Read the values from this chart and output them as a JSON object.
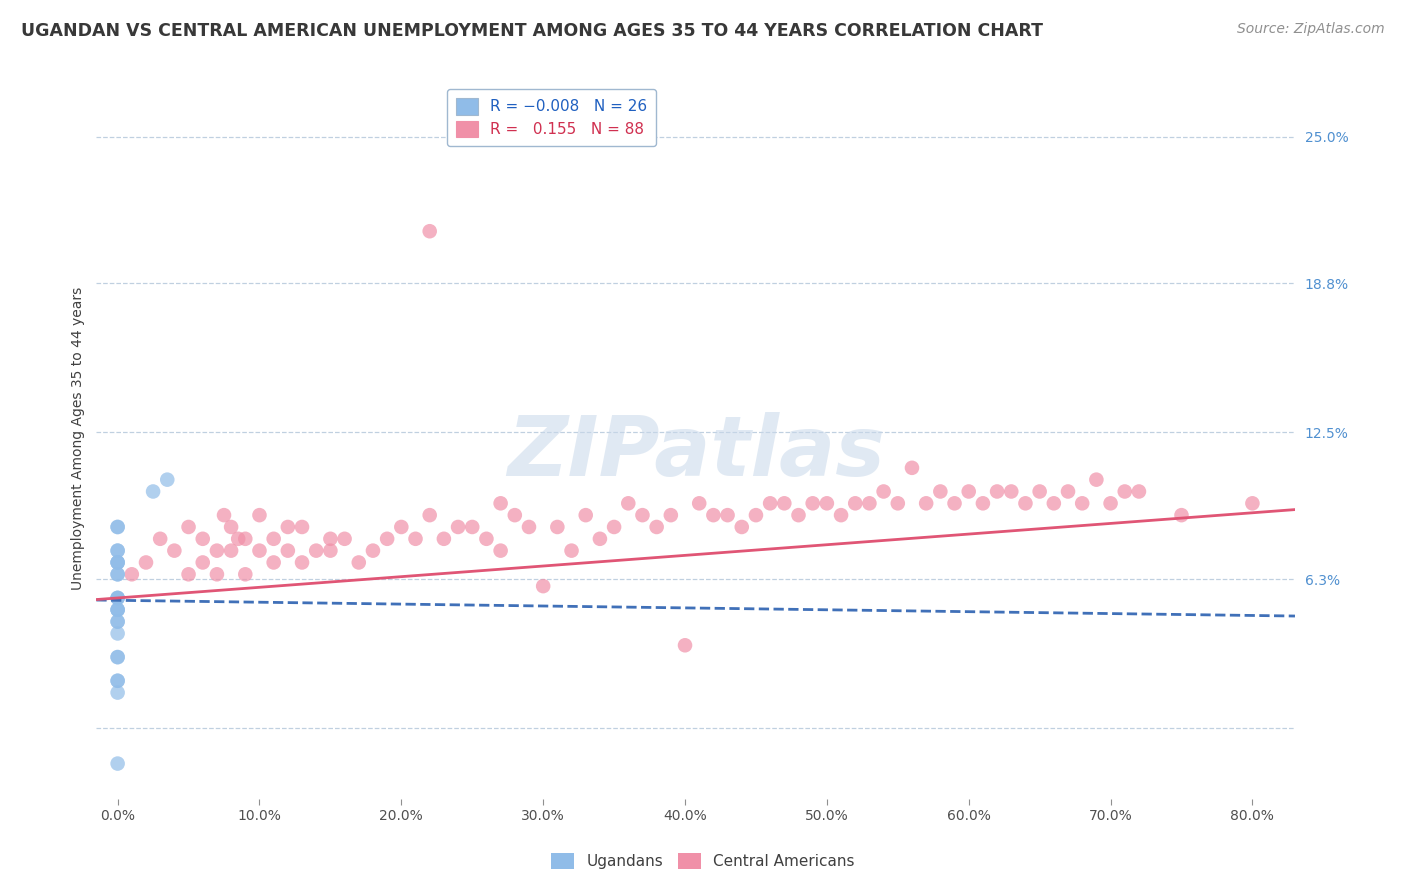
{
  "title": "UGANDAN VS CENTRAL AMERICAN UNEMPLOYMENT AMONG AGES 35 TO 44 YEARS CORRELATION CHART",
  "source": "Source: ZipAtlas.com",
  "xlabel_ticks": [
    0.0,
    10.0,
    20.0,
    30.0,
    40.0,
    50.0,
    60.0,
    70.0,
    80.0
  ],
  "ylabel_ticks": [
    0.0,
    6.3,
    12.5,
    18.8,
    25.0
  ],
  "ylabel_label": "Unemployment Among Ages 35 to 44 years",
  "xlim": [
    -1.5,
    83.0
  ],
  "ylim": [
    -3.0,
    27.5
  ],
  "ugandan_x": [
    0.0,
    0.0,
    0.0,
    0.0,
    0.0,
    0.0,
    0.0,
    0.0,
    0.0,
    0.0,
    0.0,
    0.0,
    0.0,
    0.0,
    0.0,
    0.0,
    0.0,
    0.0,
    2.5,
    3.5,
    0.0,
    0.0,
    0.0,
    0.0,
    0.0,
    0.0
  ],
  "ugandan_y": [
    8.5,
    8.5,
    7.5,
    7.5,
    7.0,
    7.0,
    7.0,
    6.5,
    6.5,
    5.5,
    5.5,
    5.5,
    5.0,
    5.0,
    5.0,
    4.5,
    4.5,
    4.0,
    10.0,
    10.5,
    3.0,
    3.0,
    2.0,
    2.0,
    1.5,
    -1.5
  ],
  "central_x": [
    1.0,
    2.0,
    3.0,
    4.0,
    5.0,
    5.0,
    6.0,
    6.0,
    7.0,
    7.0,
    7.5,
    8.0,
    8.0,
    8.5,
    9.0,
    9.0,
    10.0,
    10.0,
    11.0,
    11.0,
    12.0,
    12.0,
    13.0,
    13.0,
    14.0,
    15.0,
    15.0,
    16.0,
    17.0,
    18.0,
    19.0,
    20.0,
    21.0,
    22.0,
    22.0,
    23.0,
    24.0,
    25.0,
    26.0,
    27.0,
    27.0,
    28.0,
    29.0,
    30.0,
    31.0,
    32.0,
    33.0,
    34.0,
    35.0,
    36.0,
    37.0,
    38.0,
    39.0,
    40.0,
    41.0,
    42.0,
    43.0,
    44.0,
    45.0,
    46.0,
    47.0,
    48.0,
    49.0,
    50.0,
    51.0,
    52.0,
    53.0,
    54.0,
    55.0,
    56.0,
    57.0,
    58.0,
    59.0,
    60.0,
    61.0,
    62.0,
    63.0,
    64.0,
    65.0,
    66.0,
    67.0,
    68.0,
    69.0,
    70.0,
    71.0,
    72.0,
    75.0,
    80.0
  ],
  "central_y": [
    6.5,
    7.0,
    8.0,
    7.5,
    6.5,
    8.5,
    8.0,
    7.0,
    6.5,
    7.5,
    9.0,
    7.5,
    8.5,
    8.0,
    8.0,
    6.5,
    7.5,
    9.0,
    8.0,
    7.0,
    8.5,
    7.5,
    7.0,
    8.5,
    7.5,
    8.0,
    7.5,
    8.0,
    7.0,
    7.5,
    8.0,
    8.5,
    8.0,
    9.0,
    21.0,
    8.0,
    8.5,
    8.5,
    8.0,
    9.5,
    7.5,
    9.0,
    8.5,
    6.0,
    8.5,
    7.5,
    9.0,
    8.0,
    8.5,
    9.5,
    9.0,
    8.5,
    9.0,
    3.5,
    9.5,
    9.0,
    9.0,
    8.5,
    9.0,
    9.5,
    9.5,
    9.0,
    9.5,
    9.5,
    9.0,
    9.5,
    9.5,
    10.0,
    9.5,
    11.0,
    9.5,
    10.0,
    9.5,
    10.0,
    9.5,
    10.0,
    10.0,
    9.5,
    10.0,
    9.5,
    10.0,
    9.5,
    10.5,
    9.5,
    10.0,
    10.0,
    9.0,
    9.5
  ],
  "ugandan_color": "#90bce8",
  "central_color": "#f090a8",
  "ugandan_trend_color": "#4070b8",
  "central_trend_color": "#e05575",
  "background_color": "#ffffff",
  "grid_color": "#c0d0e0",
  "watermark_text": "ZIPatlas",
  "title_fontsize": 12.5,
  "axis_label_fontsize": 10,
  "tick_fontsize": 10,
  "source_fontsize": 10,
  "ugandan_trend_slope": -0.008,
  "ugandan_trend_intercept": 5.4,
  "central_trend_slope": 0.045,
  "central_trend_intercept": 5.5
}
